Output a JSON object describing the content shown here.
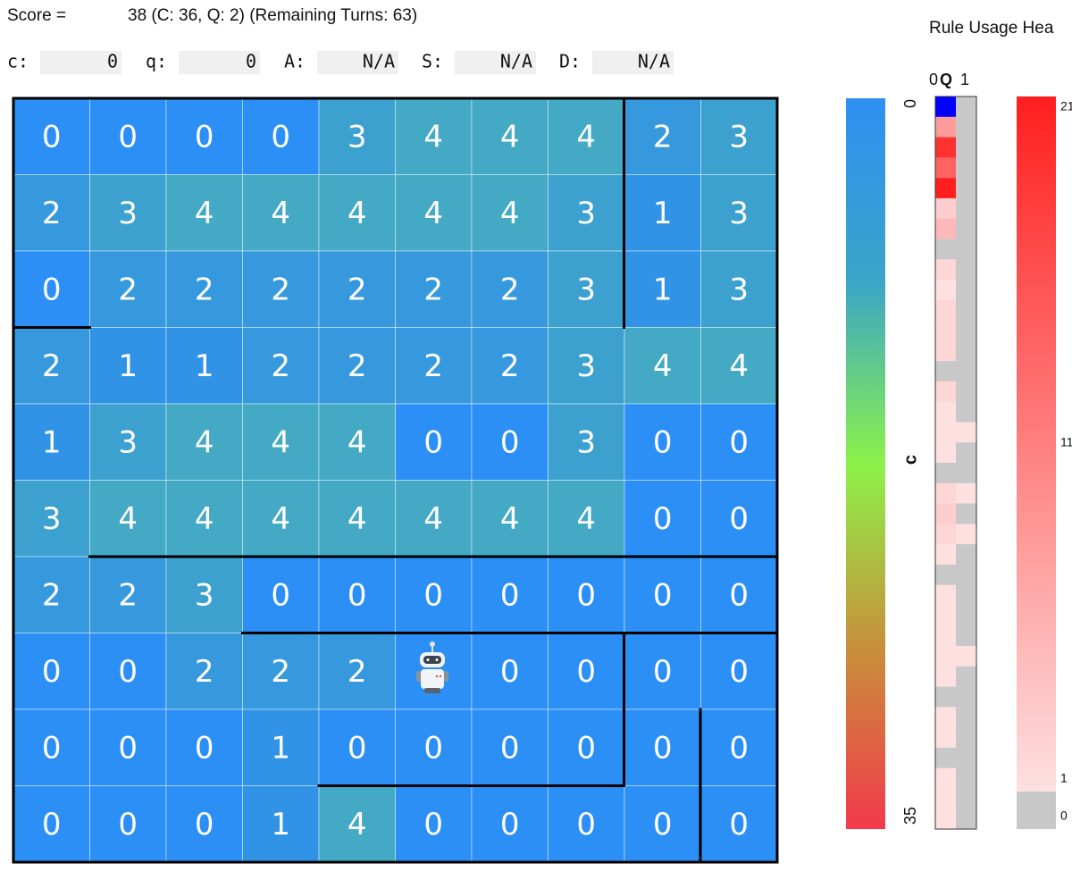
{
  "header": {
    "score_label": "Score =",
    "score_text": "38 (C: 36, Q: 2) (Remaining Turns: 63)"
  },
  "fields": [
    {
      "label": "c:",
      "value": 0
    },
    {
      "label": "q:",
      "value": 0
    },
    {
      "label": "A:",
      "value": "N/A"
    },
    {
      "label": "S:",
      "value": "N/A"
    },
    {
      "label": "D:",
      "value": "N/A"
    }
  ],
  "grid": {
    "cells": [
      [
        0,
        0,
        0,
        0,
        3,
        4,
        4,
        4,
        2,
        3
      ],
      [
        2,
        3,
        4,
        4,
        4,
        4,
        4,
        3,
        1,
        3
      ],
      [
        0,
        2,
        2,
        2,
        2,
        2,
        2,
        3,
        1,
        3
      ],
      [
        2,
        1,
        1,
        2,
        2,
        2,
        2,
        3,
        4,
        4
      ],
      [
        1,
        3,
        4,
        4,
        4,
        0,
        0,
        3,
        0,
        0
      ],
      [
        3,
        4,
        4,
        4,
        4,
        4,
        4,
        4,
        0,
        0
      ],
      [
        2,
        2,
        3,
        0,
        0,
        0,
        0,
        0,
        0,
        0
      ],
      [
        0,
        0,
        2,
        2,
        2,
        null,
        0,
        0,
        0,
        0
      ],
      [
        0,
        0,
        0,
        1,
        0,
        0,
        0,
        0,
        0,
        0
      ],
      [
        0,
        0,
        0,
        1,
        4,
        0,
        0,
        0,
        0,
        0
      ]
    ],
    "palette": [
      "#2b8ff6",
      "#3193e6",
      "#3799dd",
      "#3da1cf",
      "#43a9c5"
    ]
  },
  "colorbar": {
    "label": "c",
    "range": [
      0,
      35
    ],
    "ticks": [
      0,
      35
    ],
    "stops": [
      "#2e90f2",
      "#3aa5c8",
      "#8cf24a",
      "#c8903a",
      "#f23a4c"
    ]
  },
  "rule_heatmap": {
    "title": "Rule Usage Hea",
    "columns": [
      "0",
      "Q",
      "1"
    ],
    "values": [
      [
        0,
        0
      ],
      [
        8,
        0
      ],
      [
        19,
        0
      ],
      [
        14,
        0
      ],
      [
        21,
        0
      ],
      [
        3,
        0
      ],
      [
        5,
        0
      ],
      [
        0,
        0
      ],
      [
        2,
        0
      ],
      [
        1,
        0
      ],
      [
        2,
        0
      ],
      [
        2,
        0
      ],
      [
        2,
        0
      ],
      [
        0,
        0
      ],
      [
        2,
        0
      ],
      [
        1,
        0
      ],
      [
        1,
        1
      ],
      [
        1,
        0
      ],
      [
        0,
        0
      ],
      [
        2,
        1
      ],
      [
        3,
        0
      ],
      [
        2,
        1
      ],
      [
        1,
        0
      ],
      [
        0,
        0
      ],
      [
        1,
        0
      ],
      [
        1,
        0
      ],
      [
        1,
        0
      ],
      [
        1,
        1
      ],
      [
        1,
        0
      ],
      [
        0,
        0
      ],
      [
        1,
        0
      ],
      [
        1,
        0
      ],
      [
        0,
        0
      ],
      [
        1,
        0
      ],
      [
        1,
        0
      ],
      [
        1,
        0
      ]
    ],
    "current_row": 0,
    "current_color": "#0000ff",
    "zero_color": "#c8c8c8",
    "low_color": "#fde0e0",
    "high_color": "#ff1f1f",
    "range": [
      1,
      21
    ],
    "ticks": [
      0,
      1,
      11,
      21
    ]
  }
}
